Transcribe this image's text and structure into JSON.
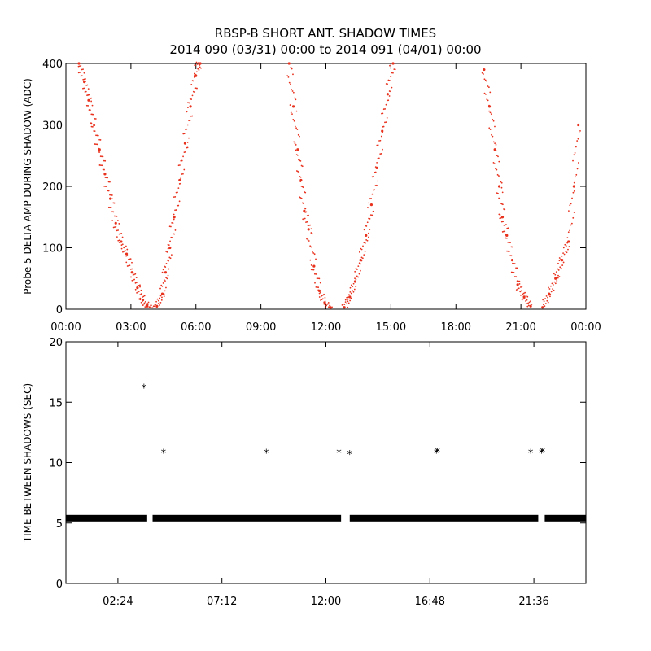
{
  "title": "RBSP-B SHORT ANT. SHADOW TIMES",
  "subtitle": "2014 090 (03/31) 00:00 to 2014 091 (04/01) 00:00",
  "colors": {
    "shadow_amp": "#e8321e",
    "interval": "#000000",
    "axes": "#000000",
    "background": "#ffffff"
  },
  "chart_data": [
    {
      "type": "scatter",
      "name": "shadow-amplitude",
      "ylabel": "Probe 5 DELTA AMP DURING SHADOW (ADC)",
      "xlabel": "",
      "x_unit": "hours",
      "xlim": [
        0,
        24
      ],
      "ylim": [
        0,
        400
      ],
      "x_tick_labels": [
        "00:00",
        "03:00",
        "06:00",
        "09:00",
        "12:00",
        "15:00",
        "18:00",
        "21:00",
        "00:00"
      ],
      "x_ticks": [
        0,
        3,
        6,
        9,
        12,
        15,
        18,
        21,
        24
      ],
      "y_ticks": [
        0,
        100,
        200,
        300,
        400
      ],
      "y_tick_labels": [
        "0",
        "100",
        "200",
        "300",
        "400"
      ],
      "grid": false,
      "series": [
        {
          "points": [
            [
              0.6,
              400
            ],
            [
              0.85,
              370
            ],
            [
              1.05,
              340
            ],
            [
              1.3,
              300
            ],
            [
              1.55,
              260
            ],
            [
              1.8,
              220
            ],
            [
              2.05,
              180
            ],
            [
              2.3,
              140
            ],
            [
              2.55,
              110
            ],
            [
              2.8,
              90
            ],
            [
              3.05,
              60
            ],
            [
              3.3,
              35
            ],
            [
              3.55,
              15
            ],
            [
              3.75,
              5
            ],
            [
              4.2,
              5
            ],
            [
              4.45,
              25
            ],
            [
              4.6,
              60
            ],
            [
              4.8,
              100
            ],
            [
              5.0,
              150
            ],
            [
              5.25,
              210
            ],
            [
              5.5,
              270
            ],
            [
              5.75,
              330
            ],
            [
              6.0,
              380
            ],
            [
              6.2,
              410
            ],
            [
              10.3,
              400
            ],
            [
              10.5,
              330
            ],
            [
              10.7,
              260
            ],
            [
              10.85,
              210
            ],
            [
              11.0,
              160
            ],
            [
              11.2,
              130
            ],
            [
              11.45,
              70
            ],
            [
              11.7,
              30
            ],
            [
              11.95,
              10
            ],
            [
              12.2,
              3
            ],
            [
              12.85,
              3
            ],
            [
              13.1,
              20
            ],
            [
              13.35,
              45
            ],
            [
              13.6,
              80
            ],
            [
              13.85,
              120
            ],
            [
              14.1,
              170
            ],
            [
              14.35,
              230
            ],
            [
              14.6,
              290
            ],
            [
              14.85,
              350
            ],
            [
              15.1,
              400
            ],
            [
              19.3,
              390
            ],
            [
              19.55,
              330
            ],
            [
              19.8,
              260
            ],
            [
              20.0,
              200
            ],
            [
              20.15,
              150
            ],
            [
              20.35,
              120
            ],
            [
              20.6,
              80
            ],
            [
              20.85,
              40
            ],
            [
              21.15,
              20
            ],
            [
              21.45,
              5
            ],
            [
              22.0,
              3
            ],
            [
              22.3,
              25
            ],
            [
              22.6,
              50
            ],
            [
              22.9,
              80
            ],
            [
              23.2,
              110
            ],
            [
              23.45,
              200
            ],
            [
              23.65,
              300
            ]
          ]
        }
      ]
    },
    {
      "type": "scatter",
      "name": "shadow-interval",
      "ylabel": "TIME BETWEEN SHADOWS (SEC)",
      "xlabel": "",
      "x_unit": "hours",
      "xlim": [
        0,
        24
      ],
      "ylim": [
        0,
        20
      ],
      "x_tick_labels": [
        "02:24",
        "07:12",
        "12:00",
        "16:48",
        "21:36"
      ],
      "x_ticks": [
        2.4,
        7.2,
        12.0,
        16.8,
        21.6
      ],
      "y_ticks": [
        0,
        5,
        10,
        15,
        20
      ],
      "y_tick_labels": [
        "0",
        "5",
        "10",
        "15",
        "20"
      ],
      "grid": false,
      "baseline_value": 5.4,
      "baseline_ranges": [
        [
          0,
          3.75
        ],
        [
          4.0,
          12.7
        ],
        [
          13.1,
          21.8
        ],
        [
          22.1,
          24
        ]
      ],
      "series": [
        {
          "points": [
            [
              3.6,
              16.2
            ],
            [
              4.5,
              10.8
            ],
            [
              9.25,
              10.8
            ],
            [
              12.6,
              10.8
            ],
            [
              13.1,
              10.7
            ],
            [
              17.1,
              10.8
            ],
            [
              17.15,
              10.9
            ],
            [
              21.45,
              10.8
            ],
            [
              21.95,
              10.8
            ],
            [
              22.0,
              10.9
            ]
          ]
        }
      ]
    }
  ]
}
